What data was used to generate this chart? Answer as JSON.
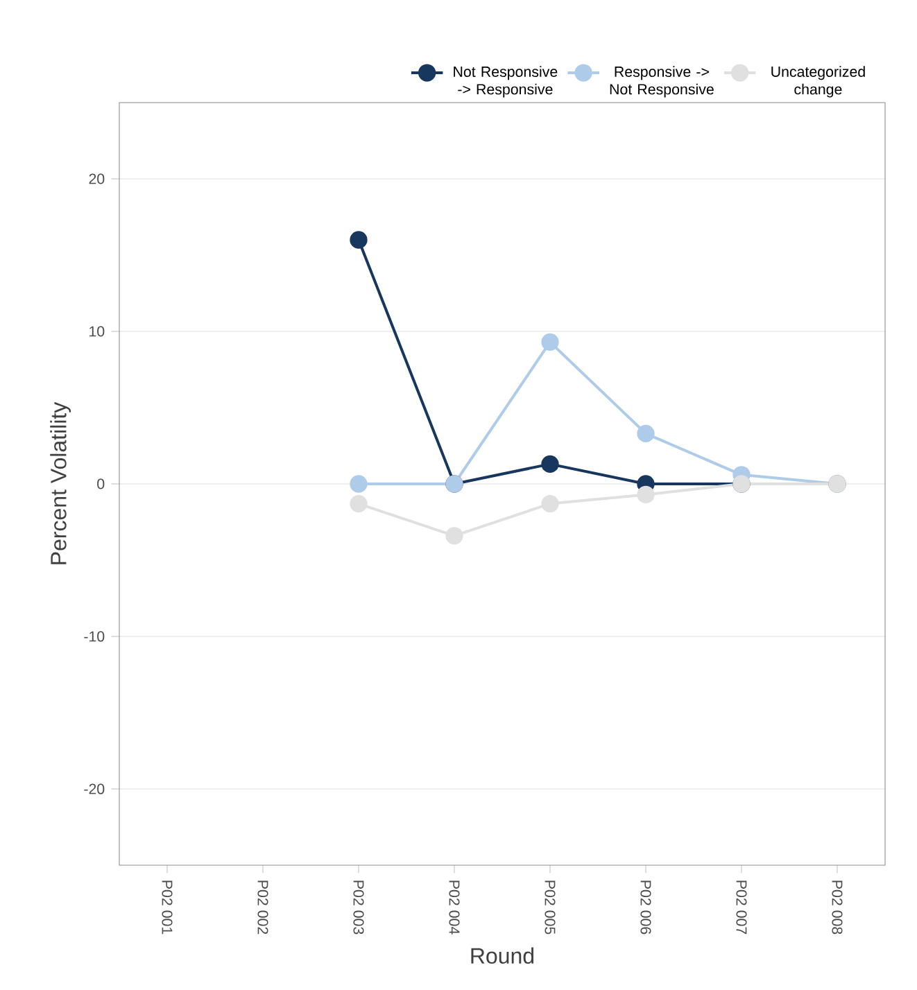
{
  "chart_data": {
    "type": "line",
    "xlabel": "Round",
    "ylabel": "Percent Volatility",
    "categories": [
      "P02 001",
      "P02 002",
      "P02 003",
      "P02 004",
      "P02 005",
      "P02 006",
      "P02 007",
      "P02 008"
    ],
    "series": [
      {
        "name": "Not Responsive -> Responsive",
        "color": "#17375e",
        "values": [
          null,
          null,
          16,
          0,
          1.3,
          0,
          0,
          0
        ]
      },
      {
        "name": "Responsive -> Not Responsive",
        "color": "#aecbea",
        "values": [
          null,
          null,
          0,
          0,
          9.3,
          3.3,
          0.6,
          0
        ]
      },
      {
        "name": "Uncategorized change",
        "color": "#e0e0e0",
        "values": [
          null,
          null,
          -1.3,
          -3.4,
          -1.3,
          -0.7,
          0,
          0
        ]
      }
    ],
    "ylim": [
      -25,
      25
    ],
    "yticks": [
      -20,
      -10,
      0,
      10,
      20
    ],
    "grid": "y",
    "legend": "top right",
    "marker": "circle",
    "line_style": "solid"
  }
}
